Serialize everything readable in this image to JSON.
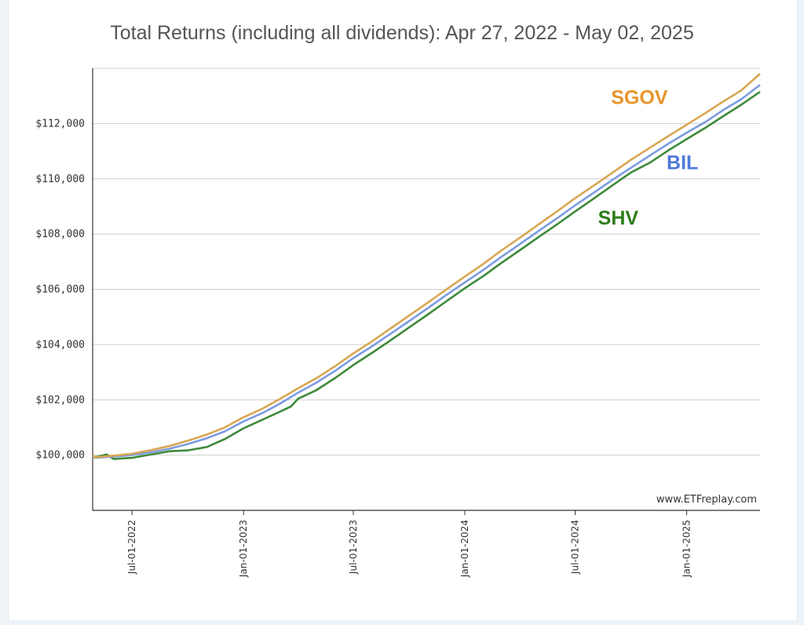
{
  "chart_data": {
    "type": "line",
    "title": "Total Returns (including all dividends): Apr 27, 2022 - May 02, 2025",
    "watermark": "www.ETFreplay.com",
    "xlabel": "",
    "ylabel": "",
    "xlim": [
      "2022-04-27",
      "2025-05-02"
    ],
    "ylim": [
      98000,
      114000
    ],
    "grid": true,
    "y_ticks": [
      100000,
      102000,
      104000,
      106000,
      108000,
      110000,
      112000
    ],
    "y_tick_labels": [
      "$100,000",
      "$102,000",
      "$104,000",
      "$106,000",
      "$108,000",
      "$110,000",
      "$112,000"
    ],
    "x_ticks": [
      "2022-07-01",
      "2023-01-01",
      "2023-07-01",
      "2024-01-01",
      "2024-07-01",
      "2025-01-01"
    ],
    "x_tick_labels": [
      "Jul-01-2022",
      "Jan-01-2023",
      "Jul-01-2023",
      "Jan-01-2024",
      "Jul-01-2024",
      "Jan-01-2025"
    ],
    "legend": "inline labels near line ends",
    "series": [
      {
        "name": "SGOV",
        "color": "#e8952a",
        "line_color": "#d9a653",
        "points": [
          [
            "2022-04-27",
            100000
          ],
          [
            "2022-05-01",
            99920
          ],
          [
            "2022-06-01",
            99980
          ],
          [
            "2022-07-01",
            100050
          ],
          [
            "2022-08-01",
            100180
          ],
          [
            "2022-09-01",
            100330
          ],
          [
            "2022-10-01",
            100520
          ],
          [
            "2022-11-01",
            100740
          ],
          [
            "2022-12-01",
            101000
          ],
          [
            "2023-01-01",
            101370
          ],
          [
            "2023-02-01",
            101680
          ],
          [
            "2023-03-01",
            102020
          ],
          [
            "2023-04-01",
            102420
          ],
          [
            "2023-05-01",
            102780
          ],
          [
            "2023-06-01",
            103220
          ],
          [
            "2023-07-01",
            103680
          ],
          [
            "2023-08-01",
            104120
          ],
          [
            "2023-09-01",
            104590
          ],
          [
            "2023-10-01",
            105050
          ],
          [
            "2023-11-01",
            105520
          ],
          [
            "2023-12-01",
            105990
          ],
          [
            "2024-01-01",
            106460
          ],
          [
            "2024-02-01",
            106930
          ],
          [
            "2024-03-01",
            107400
          ],
          [
            "2024-04-01",
            107870
          ],
          [
            "2024-05-01",
            108340
          ],
          [
            "2024-06-01",
            108820
          ],
          [
            "2024-07-01",
            109300
          ],
          [
            "2024-08-01",
            109760
          ],
          [
            "2024-09-01",
            110230
          ],
          [
            "2024-10-01",
            110690
          ],
          [
            "2024-11-01",
            111120
          ],
          [
            "2024-12-01",
            111540
          ],
          [
            "2025-01-01",
            111960
          ],
          [
            "2025-02-01",
            112380
          ],
          [
            "2025-03-01",
            112780
          ],
          [
            "2025-04-01",
            113200
          ],
          [
            "2025-05-02",
            113800
          ]
        ]
      },
      {
        "name": "BIL",
        "color": "#4e79d9",
        "line_color": "#7c9be0",
        "points": [
          [
            "2022-04-27",
            99980
          ],
          [
            "2022-05-01",
            99900
          ],
          [
            "2022-06-01",
            99950
          ],
          [
            "2022-07-01",
            100000
          ],
          [
            "2022-08-01",
            100100
          ],
          [
            "2022-09-01",
            100230
          ],
          [
            "2022-10-01",
            100400
          ],
          [
            "2022-11-01",
            100610
          ],
          [
            "2022-12-01",
            100860
          ],
          [
            "2023-01-01",
            101220
          ],
          [
            "2023-02-01",
            101520
          ],
          [
            "2023-03-01",
            101850
          ],
          [
            "2023-04-01",
            102260
          ],
          [
            "2023-05-01",
            102620
          ],
          [
            "2023-06-01",
            103050
          ],
          [
            "2023-07-01",
            103510
          ],
          [
            "2023-08-01",
            103940
          ],
          [
            "2023-09-01",
            104400
          ],
          [
            "2023-10-01",
            104850
          ],
          [
            "2023-11-01",
            105320
          ],
          [
            "2023-12-01",
            105790
          ],
          [
            "2024-01-01",
            106250
          ],
          [
            "2024-02-01",
            106710
          ],
          [
            "2024-03-01",
            107170
          ],
          [
            "2024-04-01",
            107640
          ],
          [
            "2024-05-01",
            108100
          ],
          [
            "2024-06-01",
            108570
          ],
          [
            "2024-07-01",
            109040
          ],
          [
            "2024-08-01",
            109500
          ],
          [
            "2024-09-01",
            109970
          ],
          [
            "2024-10-01",
            110400
          ],
          [
            "2024-11-01",
            110840
          ],
          [
            "2024-12-01",
            111260
          ],
          [
            "2025-01-01",
            111670
          ],
          [
            "2025-02-01",
            112060
          ],
          [
            "2025-03-01",
            112470
          ],
          [
            "2025-04-01",
            112880
          ],
          [
            "2025-05-02",
            113400
          ]
        ]
      },
      {
        "name": "SHV",
        "color": "#2d7d1b",
        "line_color": "#3f8a3a",
        "points": [
          [
            "2022-04-27",
            99990
          ],
          [
            "2022-05-01",
            99920
          ],
          [
            "2022-05-20",
            100020
          ],
          [
            "2022-06-01",
            99860
          ],
          [
            "2022-06-15",
            99880
          ],
          [
            "2022-07-01",
            99900
          ],
          [
            "2022-08-01",
            100020
          ],
          [
            "2022-09-01",
            100140
          ],
          [
            "2022-10-01",
            100170
          ],
          [
            "2022-11-01",
            100290
          ],
          [
            "2022-12-01",
            100580
          ],
          [
            "2023-01-01",
            100970
          ],
          [
            "2023-02-01",
            101280
          ],
          [
            "2023-03-01",
            101560
          ],
          [
            "2023-03-20",
            101760
          ],
          [
            "2023-04-01",
            102040
          ],
          [
            "2023-05-01",
            102350
          ],
          [
            "2023-06-01",
            102790
          ],
          [
            "2023-07-01",
            103260
          ],
          [
            "2023-08-01",
            103700
          ],
          [
            "2023-09-01",
            104160
          ],
          [
            "2023-10-01",
            104620
          ],
          [
            "2023-11-01",
            105090
          ],
          [
            "2023-12-01",
            105560
          ],
          [
            "2024-01-01",
            106040
          ],
          [
            "2024-02-01",
            106490
          ],
          [
            "2024-03-01",
            106950
          ],
          [
            "2024-04-01",
            107420
          ],
          [
            "2024-05-01",
            107880
          ],
          [
            "2024-06-01",
            108350
          ],
          [
            "2024-07-01",
            108820
          ],
          [
            "2024-08-01",
            109290
          ],
          [
            "2024-09-01",
            109770
          ],
          [
            "2024-10-01",
            110230
          ],
          [
            "2024-11-01",
            110580
          ],
          [
            "2024-12-01",
            111020
          ],
          [
            "2025-01-01",
            111440
          ],
          [
            "2025-02-01",
            111850
          ],
          [
            "2025-03-01",
            112250
          ],
          [
            "2025-04-01",
            112680
          ],
          [
            "2025-05-02",
            113150
          ]
        ]
      }
    ]
  }
}
